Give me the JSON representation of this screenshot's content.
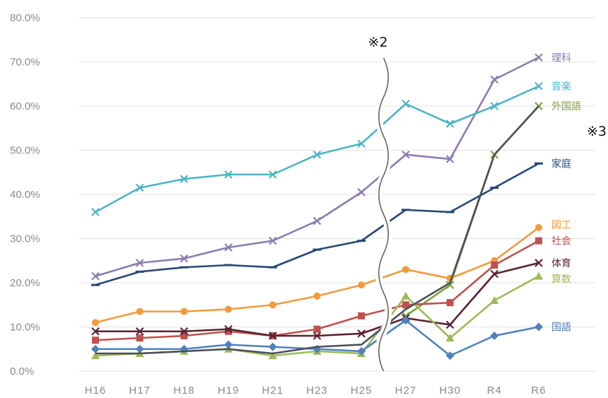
{
  "chart_data": {
    "type": "line",
    "title": "",
    "xlabel": "",
    "ylabel": "",
    "categories": [
      "H16",
      "H17",
      "H18",
      "H19",
      "H21",
      "H23",
      "H25",
      "H27",
      "H30",
      "R4",
      "R6"
    ],
    "ylim": [
      0,
      80
    ],
    "yticks": [
      "0.0%",
      "10.0%",
      "20.0%",
      "30.0%",
      "40.0%",
      "50.0%",
      "60.0%",
      "70.0%",
      "80.0%"
    ],
    "grid": true,
    "axis_break": {
      "between": [
        "H25",
        "H27"
      ],
      "label": "※2"
    },
    "annotations": [
      {
        "text": "※3",
        "near_series": "外国語"
      }
    ],
    "series": [
      {
        "name": "理科",
        "color": "#8c7bb0",
        "marker": "x",
        "values": [
          21.5,
          24.5,
          25.5,
          28,
          29.5,
          34,
          40.5,
          49,
          48,
          66,
          71
        ]
      },
      {
        "name": "音楽",
        "color": "#4bb5c5",
        "marker": "x",
        "values": [
          36,
          41.5,
          43.5,
          44.5,
          44.5,
          49,
          51.5,
          60.5,
          56,
          60,
          64.5
        ]
      },
      {
        "name": "外国語",
        "color": "#7ea23c",
        "marker": "x",
        "values": [
          null,
          null,
          null,
          null,
          null,
          null,
          null,
          12.5,
          19.5,
          49,
          60
        ]
      },
      {
        "name": "家庭",
        "color": "#264878",
        "marker": "dash",
        "values": [
          19.5,
          22.5,
          23.5,
          24,
          23.5,
          27.5,
          29.5,
          36.5,
          36,
          41.5,
          47
        ]
      },
      {
        "name": "図工",
        "color": "#f39a3c",
        "marker": "circle",
        "values": [
          11,
          13.5,
          13.5,
          14,
          15,
          17,
          19.5,
          23,
          21,
          25,
          32.5
        ]
      },
      {
        "name": "社会",
        "color": "#c0504d",
        "marker": "square",
        "values": [
          7,
          7.5,
          8,
          9,
          8,
          9.5,
          12.5,
          15,
          15.5,
          24,
          29.5
        ]
      },
      {
        "name": "体育",
        "color": "#5a2132",
        "marker": "x",
        "values": [
          9,
          9,
          9,
          9.5,
          8,
          8,
          8.5,
          12,
          10.5,
          22,
          24.5
        ]
      },
      {
        "name": "算数",
        "color": "#9bbb59",
        "marker": "triangle",
        "values": [
          3.5,
          4,
          4.5,
          5,
          3.5,
          4.5,
          4,
          17,
          7.5,
          16,
          21.5
        ]
      },
      {
        "name": "国語",
        "color": "#4f81bd",
        "marker": "diamond",
        "values": [
          5,
          5,
          5,
          6,
          5.5,
          5,
          4.5,
          11.5,
          3.5,
          8,
          10
        ]
      },
      {
        "name": "",
        "color": "#4b4f5a",
        "marker": "none",
        "values": [
          4,
          4,
          4.5,
          5,
          4,
          5.5,
          6,
          14,
          20,
          49,
          60
        ]
      }
    ]
  }
}
